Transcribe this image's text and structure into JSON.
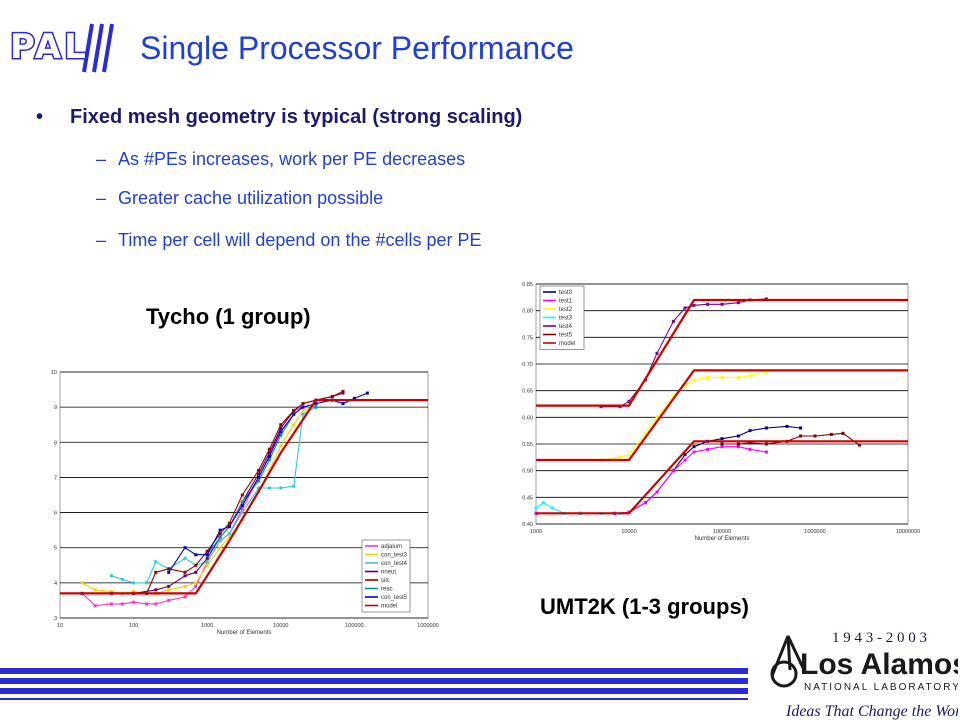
{
  "logo": {
    "text": "PAL"
  },
  "title": "Single Processor Performance",
  "bullets": {
    "main_marker": "•",
    "main": "Fixed mesh geometry is typical (strong scaling)",
    "sub_marker": "–",
    "subs": [
      "As #PEs increases, work per PE decreases",
      "Greater cache utilization possible",
      "Time per cell will depend on the #cells per PE"
    ]
  },
  "captions": {
    "left": "Tycho (1 group)",
    "right": "UMT2K (1-3 groups)"
  },
  "footer": {
    "years": "1 9 4 3 - 2 0 0 3",
    "org_name": "Los Alamos",
    "org_sub": "NATIONAL LABORATORY",
    "tagline": "Ideas That Change the World"
  },
  "colors": {
    "title": "#1f3fd6",
    "accent_stripes": "#2a2ad6",
    "model_line": "#cc0000"
  },
  "chart_data": [
    {
      "type": "line",
      "title": "",
      "xlabel": "Number of Elements",
      "ylabel": "",
      "xscale": "log",
      "xlim": [
        10,
        1000000
      ],
      "ylim": [
        3,
        10
      ],
      "x_ticks": [
        "10",
        "100",
        "1000",
        "10000",
        "100000",
        "1000000"
      ],
      "y_ticks": [
        "3",
        "4",
        "5",
        "6",
        "7",
        "8",
        "9",
        "10"
      ],
      "grid": "horizontal",
      "legend_position": "bottom-right",
      "series": [
        {
          "name": "adjalum",
          "color": "#ff33cc",
          "points": [
            [
              20,
              3.7
            ],
            [
              30,
              3.35
            ],
            [
              50,
              3.4
            ],
            [
              70,
              3.4
            ],
            [
              100,
              3.45
            ],
            [
              150,
              3.4
            ],
            [
              200,
              3.4
            ],
            [
              300,
              3.5
            ],
            [
              500,
              3.6
            ],
            [
              700,
              3.9
            ],
            [
              1000,
              4.6
            ],
            [
              1500,
              5.2
            ],
            [
              2000,
              5.4
            ],
            [
              3000,
              6.1
            ],
            [
              5000,
              7.0
            ],
            [
              7000,
              7.6
            ],
            [
              10000,
              8.4
            ],
            [
              15000,
              8.9
            ],
            [
              20000,
              9.0
            ]
          ]
        },
        {
          "name": "con_test3",
          "color": "#ffcc00",
          "points": [
            [
              20,
              4.0
            ],
            [
              30,
              3.8
            ],
            [
              50,
              3.75
            ],
            [
              70,
              3.7
            ],
            [
              100,
              3.75
            ],
            [
              150,
              3.7
            ],
            [
              200,
              3.7
            ],
            [
              300,
              3.8
            ],
            [
              500,
              3.9
            ],
            [
              700,
              4.0
            ],
            [
              1000,
              4.5
            ],
            [
              1500,
              5.0
            ],
            [
              2000,
              5.3
            ],
            [
              3000,
              5.8
            ],
            [
              5000,
              6.6
            ],
            [
              7000,
              7.2
            ],
            [
              10000,
              7.9
            ],
            [
              15000,
              8.5
            ],
            [
              20000,
              8.9
            ],
            [
              30000,
              9.05
            ]
          ]
        },
        {
          "name": "con_test4",
          "color": "#33cccc",
          "points": [
            [
              50,
              4.2
            ],
            [
              70,
              4.1
            ],
            [
              100,
              4.0
            ],
            [
              150,
              4.0
            ],
            [
              200,
              4.6
            ],
            [
              300,
              4.4
            ],
            [
              500,
              4.7
            ],
            [
              700,
              4.5
            ],
            [
              1000,
              4.6
            ],
            [
              1500,
              5.2
            ],
            [
              2000,
              5.4
            ],
            [
              3000,
              6.0
            ],
            [
              5000,
              6.7
            ],
            [
              7000,
              6.7
            ],
            [
              10000,
              6.7
            ],
            [
              15000,
              6.75
            ],
            [
              20000,
              8.8
            ],
            [
              30000,
              9.0
            ]
          ]
        },
        {
          "name": "nneut",
          "color": "#660066",
          "points": [
            [
              20,
              3.7
            ],
            [
              50,
              3.7
            ],
            [
              100,
              3.7
            ],
            [
              200,
              3.8
            ],
            [
              300,
              3.9
            ],
            [
              500,
              4.2
            ],
            [
              700,
              4.3
            ],
            [
              1000,
              4.7
            ],
            [
              1500,
              5.3
            ],
            [
              2000,
              5.6
            ],
            [
              3000,
              6.3
            ],
            [
              5000,
              7.1
            ],
            [
              7000,
              7.7
            ],
            [
              10000,
              8.4
            ],
            [
              15000,
              8.9
            ],
            [
              20000,
              9.1
            ],
            [
              30000,
              9.2
            ],
            [
              50000,
              9.3
            ],
            [
              70000,
              9.4
            ]
          ]
        },
        {
          "name": "silc",
          "color": "#990000",
          "points": [
            [
              100,
              3.7
            ],
            [
              150,
              3.7
            ],
            [
              200,
              4.3
            ],
            [
              300,
              4.4
            ],
            [
              500,
              4.3
            ],
            [
              700,
              4.5
            ],
            [
              1000,
              4.9
            ],
            [
              1500,
              5.4
            ],
            [
              2000,
              5.7
            ],
            [
              3000,
              6.5
            ],
            [
              5000,
              7.2
            ],
            [
              7000,
              7.8
            ],
            [
              10000,
              8.5
            ],
            [
              15000,
              8.9
            ],
            [
              20000,
              9.1
            ],
            [
              30000,
              9.2
            ],
            [
              50000,
              9.3
            ],
            [
              70000,
              9.45
            ]
          ]
        },
        {
          "name": "reac",
          "color": "#009999",
          "points": [
            [
              1000,
              4.8
            ],
            [
              1500,
              5.3
            ],
            [
              2000,
              5.6
            ],
            [
              3000,
              6.3
            ],
            [
              5000,
              6.9
            ],
            [
              7000,
              7.5
            ],
            [
              10000,
              8.2
            ],
            [
              15000,
              8.8
            ],
            [
              20000,
              9.0
            ],
            [
              30000,
              9.0
            ]
          ]
        },
        {
          "name": "con_test5",
          "color": "#0000cc",
          "points": [
            [
              300,
              4.3
            ],
            [
              500,
              5.0
            ],
            [
              700,
              4.8
            ],
            [
              1000,
              4.8
            ],
            [
              1500,
              5.5
            ],
            [
              2000,
              5.6
            ],
            [
              3000,
              6.2
            ],
            [
              5000,
              7.0
            ],
            [
              7000,
              7.6
            ],
            [
              10000,
              8.3
            ],
            [
              15000,
              8.8
            ],
            [
              20000,
              9.0
            ],
            [
              30000,
              9.1
            ],
            [
              50000,
              9.2
            ],
            [
              70000,
              9.1
            ],
            [
              100000,
              9.25
            ],
            [
              150000,
              9.4
            ]
          ]
        },
        {
          "name": "model",
          "color": "#cc0000",
          "points": [
            [
              10,
              3.7
            ],
            [
              700,
              3.7
            ],
            [
              1000,
              4.2
            ],
            [
              2000,
              5.2
            ],
            [
              5000,
              6.6
            ],
            [
              10000,
              7.7
            ],
            [
              30000,
              9.2
            ],
            [
              1000000,
              9.2
            ]
          ]
        }
      ]
    },
    {
      "type": "line",
      "title": "",
      "xlabel": "Number of Elements",
      "ylabel": "",
      "xscale": "log",
      "xlim": [
        1000,
        10000000
      ],
      "ylim": [
        0.4,
        0.85
      ],
      "x_ticks": [
        "1000",
        "10000",
        "100000",
        "1000000",
        "10000000"
      ],
      "y_ticks": [
        "0.40",
        "0.45",
        "0.50",
        "0.55",
        "0.60",
        "0.65",
        "0.70",
        "0.75",
        "0.80",
        "0.85"
      ],
      "grid": "horizontal",
      "legend_position": "top-left",
      "series": [
        {
          "name": "test0",
          "color": "#000080",
          "points": [
            [
              1000,
              0.42
            ],
            [
              3000,
              0.42
            ],
            [
              7000,
              0.42
            ],
            [
              10000,
              0.422
            ],
            [
              15000,
              0.44
            ],
            [
              20000,
              0.46
            ],
            [
              30000,
              0.5
            ],
            [
              40000,
              0.53
            ],
            [
              50000,
              0.545
            ],
            [
              70000,
              0.555
            ],
            [
              100000,
              0.56
            ],
            [
              150000,
              0.565
            ],
            [
              200000,
              0.575
            ],
            [
              300000,
              0.58
            ],
            [
              500000,
              0.583
            ],
            [
              700000,
              0.58
            ]
          ]
        },
        {
          "name": "test1",
          "color": "#ff00ff",
          "points": [
            [
              1000,
              0.42
            ],
            [
              3000,
              0.42
            ],
            [
              7000,
              0.42
            ],
            [
              10000,
              0.422
            ],
            [
              15000,
              0.44
            ],
            [
              20000,
              0.46
            ],
            [
              30000,
              0.5
            ],
            [
              40000,
              0.52
            ],
            [
              50000,
              0.535
            ],
            [
              70000,
              0.54
            ],
            [
              100000,
              0.545
            ],
            [
              150000,
              0.545
            ],
            [
              200000,
              0.54
            ],
            [
              300000,
              0.535
            ]
          ]
        },
        {
          "name": "test2",
          "color": "#ffff00",
          "points": [
            [
              5000,
              0.52
            ],
            [
              8000,
              0.525
            ],
            [
              10000,
              0.53
            ],
            [
              15000,
              0.57
            ],
            [
              20000,
              0.6
            ],
            [
              30000,
              0.64
            ],
            [
              40000,
              0.66
            ],
            [
              50000,
              0.67
            ],
            [
              70000,
              0.675
            ],
            [
              100000,
              0.675
            ],
            [
              150000,
              0.675
            ],
            [
              200000,
              0.678
            ],
            [
              300000,
              0.685
            ]
          ]
        },
        {
          "name": "test3",
          "color": "#00ffff",
          "points": [
            [
              1000,
              0.43
            ],
            [
              1200,
              0.44
            ],
            [
              1500,
              0.43
            ],
            [
              2000,
              0.42
            ],
            [
              3000,
              0.42
            ],
            [
              5000,
              0.42
            ],
            [
              8000,
              0.42
            ]
          ]
        },
        {
          "name": "test4",
          "color": "#800080",
          "points": [
            [
              5000,
              0.62
            ],
            [
              8000,
              0.62
            ],
            [
              10000,
              0.63
            ],
            [
              15000,
              0.67
            ],
            [
              20000,
              0.72
            ],
            [
              30000,
              0.78
            ],
            [
              40000,
              0.805
            ],
            [
              50000,
              0.81
            ],
            [
              70000,
              0.812
            ],
            [
              100000,
              0.812
            ],
            [
              150000,
              0.815
            ],
            [
              200000,
              0.82
            ],
            [
              300000,
              0.822
            ]
          ]
        },
        {
          "name": "test5",
          "color": "#800000",
          "points": [
            [
              100000,
              0.55
            ],
            [
              150000,
              0.55
            ],
            [
              200000,
              0.552
            ],
            [
              300000,
              0.55
            ],
            [
              500000,
              0.555
            ],
            [
              700000,
              0.565
            ],
            [
              1000000,
              0.565
            ],
            [
              1500000,
              0.568
            ],
            [
              2000000,
              0.57
            ],
            [
              3000000,
              0.548
            ]
          ]
        },
        {
          "name": "model",
          "color": "#cc0000",
          "points": [
            [
              1000,
              0.42
            ],
            [
              10000,
              0.42
            ],
            [
              50000,
              0.555
            ],
            [
              10000000,
              0.555
            ]
          ]
        },
        {
          "name": "",
          "color": "#cc0000",
          "points": [
            [
              1000,
              0.52
            ],
            [
              10000,
              0.52
            ],
            [
              50000,
              0.688
            ],
            [
              10000000,
              0.688
            ]
          ]
        },
        {
          "name": "",
          "color": "#cc0000",
          "points": [
            [
              1000,
              0.622
            ],
            [
              10000,
              0.622
            ],
            [
              50000,
              0.82
            ],
            [
              10000000,
              0.82
            ]
          ]
        }
      ]
    }
  ]
}
